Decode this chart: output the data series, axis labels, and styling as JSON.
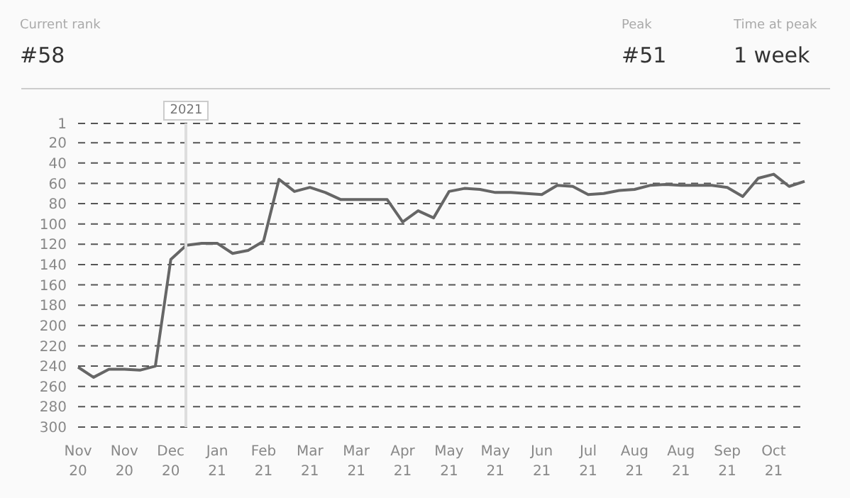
{
  "chart_data": {
    "type": "line",
    "annotations": [
      "Current rank",
      "#58",
      "Peak",
      "#51",
      "Time at peak",
      "1 week",
      "2021"
    ],
    "categories": [
      "Nov 20",
      null,
      null,
      "Nov 20",
      null,
      null,
      "Dec 20",
      null,
      null,
      "Jan 21",
      null,
      null,
      "Feb 21",
      null,
      null,
      "Mar 21",
      null,
      null,
      "Mar 21",
      null,
      null,
      "Apr 21",
      null,
      null,
      "May 21",
      null,
      null,
      "May 21",
      null,
      null,
      "Jun 21",
      null,
      null,
      "Jul 21",
      null,
      null,
      "Aug 21",
      null,
      null,
      "Aug 21",
      null,
      null,
      "Sep 21",
      null,
      null,
      "Oct 21",
      null,
      null
    ],
    "series": [
      {
        "color": "#666666",
        "values": [
          241,
          251,
          243,
          243,
          244,
          240,
          135,
          121,
          119,
          119,
          129,
          126,
          117,
          56,
          68,
          64,
          69,
          76,
          76,
          76,
          76,
          98,
          87,
          94,
          68,
          65,
          66,
          69,
          69,
          70,
          71,
          62,
          63,
          71,
          70,
          67,
          66,
          62,
          61,
          62,
          62,
          62,
          64,
          73,
          55,
          51,
          63,
          58
        ]
      }
    ],
    "ylim": [
      300,
      1
    ],
    "yticks": [
      1,
      20,
      40,
      60,
      80,
      100,
      120,
      140,
      160,
      180,
      200,
      220,
      240,
      260,
      280,
      300
    ],
    "grid": "y",
    "legend": false,
    "marker": "none",
    "line_style": "solid"
  }
}
